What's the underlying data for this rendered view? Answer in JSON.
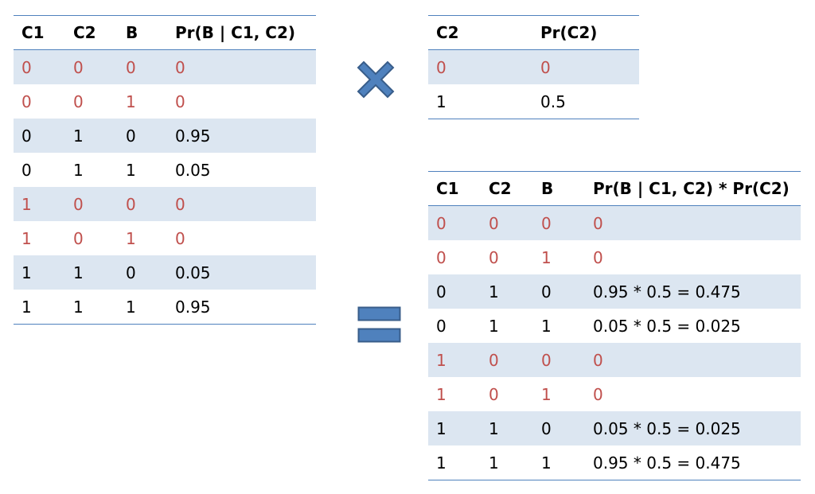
{
  "table_cpt": {
    "headers": [
      "C1",
      "C2",
      "B",
      "Pr(B | C1, C2)"
    ],
    "rows": [
      {
        "cells": [
          "0",
          "0",
          "0",
          "0"
        ],
        "red": true
      },
      {
        "cells": [
          "0",
          "0",
          "1",
          "0"
        ],
        "red": true
      },
      {
        "cells": [
          "0",
          "1",
          "0",
          "0.95"
        ],
        "red": false
      },
      {
        "cells": [
          "0",
          "1",
          "1",
          "0.05"
        ],
        "red": false
      },
      {
        "cells": [
          "1",
          "0",
          "0",
          "0"
        ],
        "red": true
      },
      {
        "cells": [
          "1",
          "0",
          "1",
          "0"
        ],
        "red": true
      },
      {
        "cells": [
          "1",
          "1",
          "0",
          "0.05"
        ],
        "red": false
      },
      {
        "cells": [
          "1",
          "1",
          "1",
          "0.95"
        ],
        "red": false
      }
    ]
  },
  "table_prior": {
    "headers": [
      "C2",
      "Pr(C2)"
    ],
    "rows": [
      {
        "cells": [
          "0",
          "0"
        ],
        "red": true
      },
      {
        "cells": [
          "1",
          "0.5"
        ],
        "red": false
      }
    ]
  },
  "table_product": {
    "headers": [
      "C1",
      "C2",
      "B",
      "Pr(B | C1, C2) * Pr(C2)"
    ],
    "rows": [
      {
        "cells": [
          "0",
          "0",
          "0",
          "0"
        ],
        "red": true
      },
      {
        "cells": [
          "0",
          "0",
          "1",
          "0"
        ],
        "red": true
      },
      {
        "cells": [
          "0",
          "1",
          "0",
          "0.95 * 0.5 = 0.475"
        ],
        "red": false
      },
      {
        "cells": [
          "0",
          "1",
          "1",
          "0.05 * 0.5 = 0.025"
        ],
        "red": false
      },
      {
        "cells": [
          "1",
          "0",
          "0",
          "0"
        ],
        "red": true
      },
      {
        "cells": [
          "1",
          "0",
          "1",
          "0"
        ],
        "red": true
      },
      {
        "cells": [
          "1",
          "1",
          "0",
          "0.05 * 0.5 = 0.025"
        ],
        "red": false
      },
      {
        "cells": [
          "1",
          "1",
          "1",
          "0.95 * 0.5 = 0.475"
        ],
        "red": false
      }
    ]
  },
  "operators": {
    "multiply_icon": "multiply-icon",
    "equals_icon": "equals-icon"
  },
  "colors": {
    "highlight_text": "#C0504D",
    "band": "#DCE6F1",
    "rule": "#4F81BD",
    "operator_fill": "#4F81BD",
    "operator_stroke": "#385D8A"
  }
}
